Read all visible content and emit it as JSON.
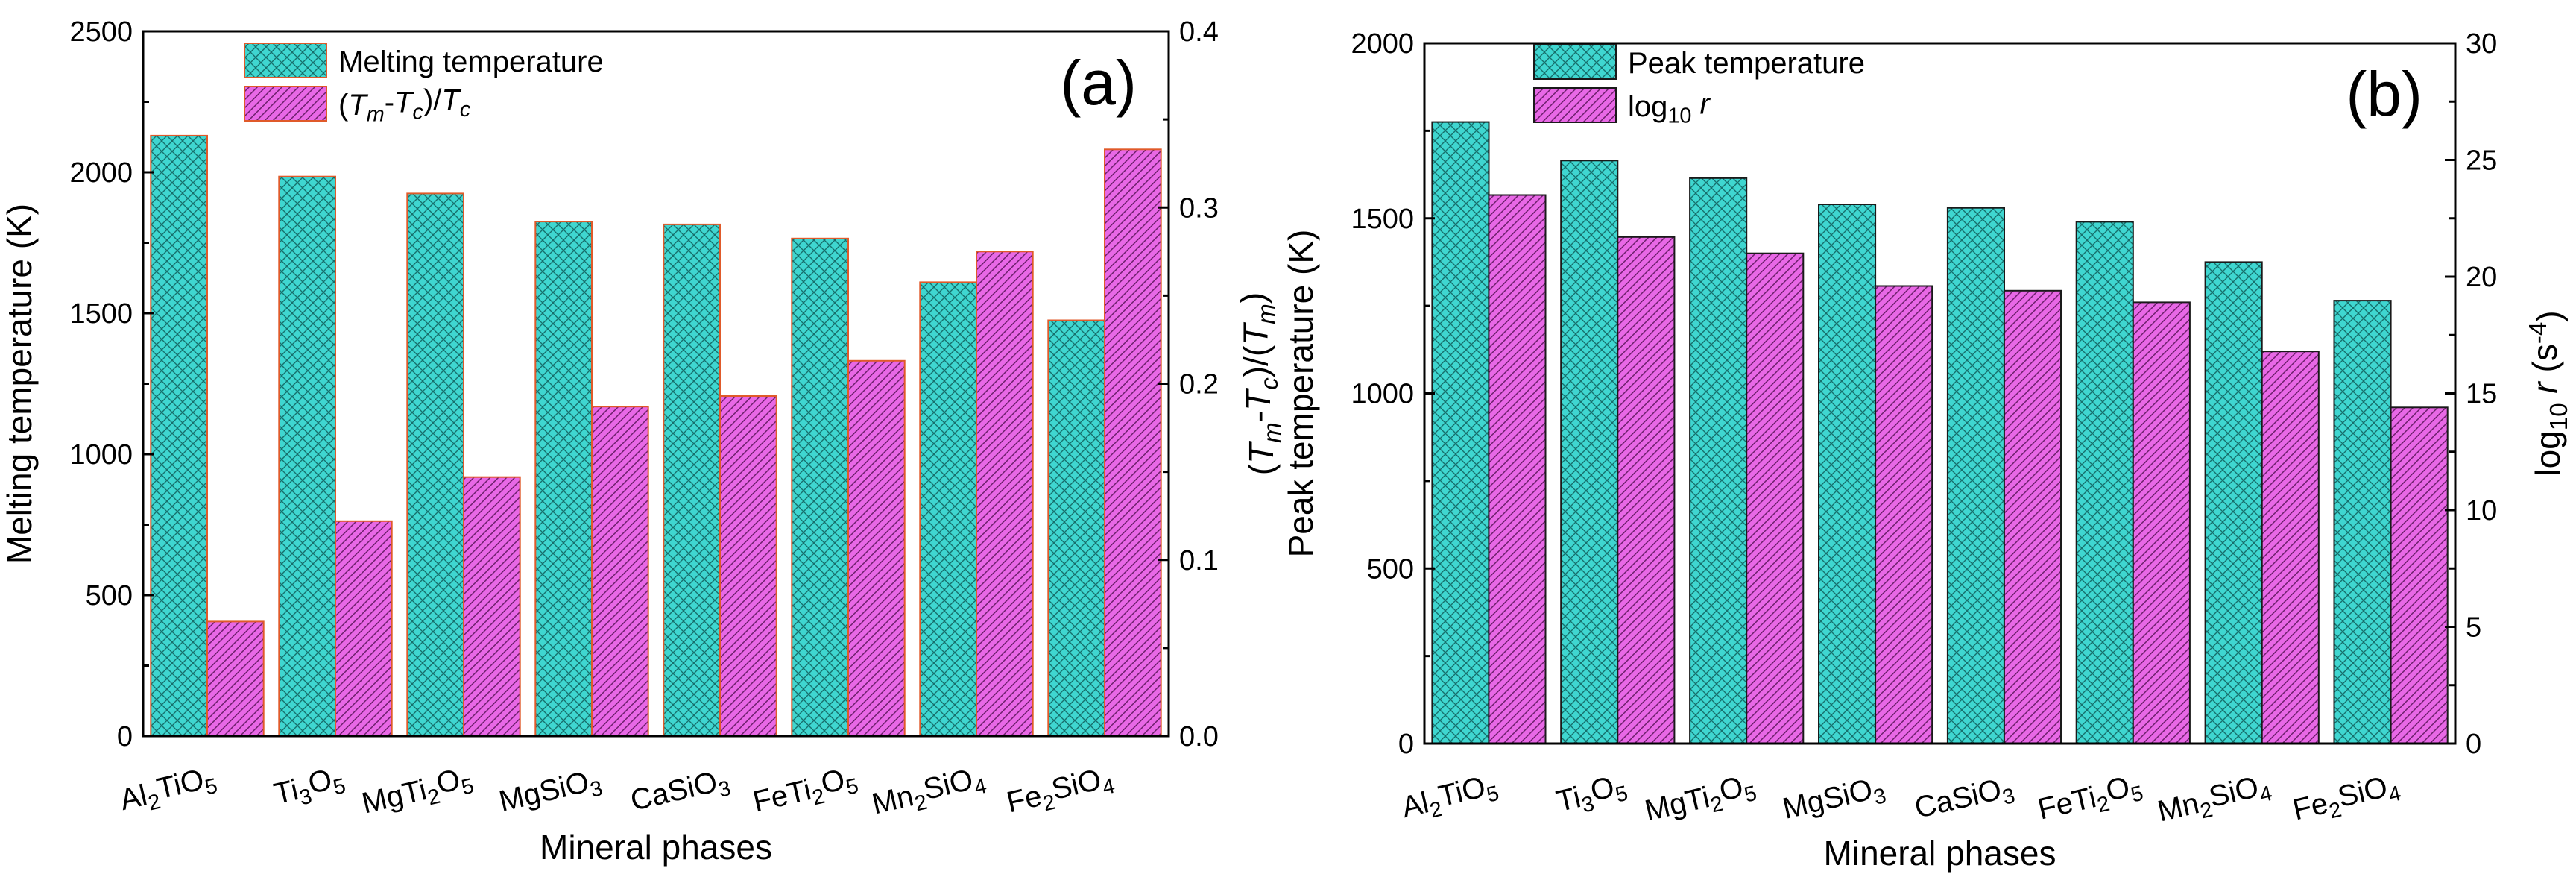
{
  "chart_data": [
    {
      "type": "bar",
      "panel_label": "(a)",
      "categories": [
        "Al2TiO5",
        "Ti3O5",
        "MgTi2O5",
        "MgSiO3",
        "CaSiO3",
        "FeTi2O5",
        "Mn2SiO4",
        "Fe2SiO4"
      ],
      "category_labels": [
        [
          {
            "t": "Al",
            "s": ""
          },
          {
            "t": "2",
            "s": "sub"
          },
          {
            "t": "TiO",
            "s": ""
          },
          {
            "t": "5",
            "s": "sub"
          }
        ],
        [
          {
            "t": "Ti",
            "s": ""
          },
          {
            "t": "3",
            "s": "sub"
          },
          {
            "t": "O",
            "s": ""
          },
          {
            "t": "5",
            "s": "sub"
          }
        ],
        [
          {
            "t": "MgTi",
            "s": ""
          },
          {
            "t": "2",
            "s": "sub"
          },
          {
            "t": "O",
            "s": ""
          },
          {
            "t": "5",
            "s": "sub"
          }
        ],
        [
          {
            "t": "MgSiO",
            "s": ""
          },
          {
            "t": "3",
            "s": "sub"
          }
        ],
        [
          {
            "t": "CaSiO",
            "s": ""
          },
          {
            "t": "3",
            "s": "sub"
          }
        ],
        [
          {
            "t": "FeTi",
            "s": ""
          },
          {
            "t": "2",
            "s": "sub"
          },
          {
            "t": "O",
            "s": ""
          },
          {
            "t": "5",
            "s": "sub"
          }
        ],
        [
          {
            "t": "Mn",
            "s": ""
          },
          {
            "t": "2",
            "s": "sub"
          },
          {
            "t": "SiO",
            "s": ""
          },
          {
            "t": "4",
            "s": "sub"
          }
        ],
        [
          {
            "t": "Fe",
            "s": ""
          },
          {
            "t": "2",
            "s": "sub"
          },
          {
            "t": "SiO",
            "s": ""
          },
          {
            "t": "4",
            "s": "sub"
          }
        ]
      ],
      "xlabel": "Mineral phases",
      "ylabel": "Melting temperature (K)",
      "ylim": [
        0,
        2500
      ],
      "yticks": [
        0,
        500,
        1000,
        1500,
        2000,
        2500
      ],
      "y2label_runs": [
        {
          "t": "(",
          "s": ""
        },
        {
          "t": "T",
          "s": "i"
        },
        {
          "t": "m",
          "s": "isub"
        },
        {
          "t": "-",
          "s": ""
        },
        {
          "t": "T",
          "s": "i"
        },
        {
          "t": "c",
          "s": "isub"
        },
        {
          "t": ")/(",
          "s": ""
        },
        {
          "t": "T",
          "s": "i"
        },
        {
          "t": "m",
          "s": "isub"
        },
        {
          "t": ")",
          "s": ""
        }
      ],
      "y2lim": [
        0,
        0.4
      ],
      "y2ticks": [
        "0.0",
        "0.1",
        "0.2",
        "0.3",
        "0.4"
      ],
      "legend_position": "top-center",
      "series": [
        {
          "name": "Melting temperature",
          "name_runs": [
            {
              "t": "Melting temperature",
              "s": ""
            }
          ],
          "axis": "left",
          "color": "#3fd6d0",
          "edge": "#e05a2a",
          "pattern": "crosshatch",
          "values": [
            2130,
            1985,
            1925,
            1825,
            1815,
            1765,
            1610,
            1475
          ]
        },
        {
          "name": "(Tm-Tc)/Tc",
          "name_runs": [
            {
              "t": "(",
              "s": ""
            },
            {
              "t": "T",
              "s": "i"
            },
            {
              "t": "m",
              "s": "isub"
            },
            {
              "t": "-",
              "s": ""
            },
            {
              "t": "T",
              "s": "i"
            },
            {
              "t": "c",
              "s": "isub"
            },
            {
              "t": ")/",
              "s": ""
            },
            {
              "t": "T",
              "s": "i"
            },
            {
              "t": "c",
              "s": "isub"
            }
          ],
          "axis": "right",
          "color": "#e868e6",
          "edge": "#e05a2a",
          "pattern": "diagonal",
          "values": [
            0.065,
            0.122,
            0.147,
            0.187,
            0.193,
            0.213,
            0.275,
            0.333
          ]
        }
      ]
    },
    {
      "type": "bar",
      "panel_label": "(b)",
      "categories": [
        "Al2TiO5",
        "Ti3O5",
        "MgTi2O5",
        "MgSiO3",
        "CaSiO3",
        "FeTi2O5",
        "Mn2SiO4",
        "Fe2SiO4"
      ],
      "category_labels": [
        [
          {
            "t": "Al",
            "s": ""
          },
          {
            "t": "2",
            "s": "sub"
          },
          {
            "t": "TiO",
            "s": ""
          },
          {
            "t": "5",
            "s": "sub"
          }
        ],
        [
          {
            "t": "Ti",
            "s": ""
          },
          {
            "t": "3",
            "s": "sub"
          },
          {
            "t": "O",
            "s": ""
          },
          {
            "t": "5",
            "s": "sub"
          }
        ],
        [
          {
            "t": "MgTi",
            "s": ""
          },
          {
            "t": "2",
            "s": "sub"
          },
          {
            "t": "O",
            "s": ""
          },
          {
            "t": "5",
            "s": "sub"
          }
        ],
        [
          {
            "t": "MgSiO",
            "s": ""
          },
          {
            "t": "3",
            "s": "sub"
          }
        ],
        [
          {
            "t": "CaSiO",
            "s": ""
          },
          {
            "t": "3",
            "s": "sub"
          }
        ],
        [
          {
            "t": "FeTi",
            "s": ""
          },
          {
            "t": "2",
            "s": "sub"
          },
          {
            "t": "O",
            "s": ""
          },
          {
            "t": "5",
            "s": "sub"
          }
        ],
        [
          {
            "t": "Mn",
            "s": ""
          },
          {
            "t": "2",
            "s": "sub"
          },
          {
            "t": "SiO",
            "s": ""
          },
          {
            "t": "4",
            "s": "sub"
          }
        ],
        [
          {
            "t": "Fe",
            "s": ""
          },
          {
            "t": "2",
            "s": "sub"
          },
          {
            "t": "SiO",
            "s": ""
          },
          {
            "t": "4",
            "s": "sub"
          }
        ]
      ],
      "xlabel": "Mineral phases",
      "ylabel": "Peak temperature (K)",
      "ylim": [
        0,
        2000
      ],
      "yticks": [
        0,
        500,
        1000,
        1500,
        2000
      ],
      "y2label_runs": [
        {
          "t": "log",
          "s": ""
        },
        {
          "t": "10",
          "s": "sub"
        },
        {
          "t": " ",
          "s": ""
        },
        {
          "t": "r",
          "s": "i"
        },
        {
          "t": " (s",
          "s": ""
        },
        {
          "t": "-4",
          "s": "sup"
        },
        {
          "t": ")",
          "s": ""
        }
      ],
      "y2lim": [
        0,
        30
      ],
      "y2ticks": [
        "0",
        "5",
        "10",
        "15",
        "20",
        "25",
        "30"
      ],
      "legend_position": "top-left",
      "series": [
        {
          "name": "Peak temperature",
          "name_runs": [
            {
              "t": "Peak temperature",
              "s": ""
            }
          ],
          "axis": "left",
          "color": "#3fd6d0",
          "edge": "#1a1a1a",
          "pattern": "crosshatch",
          "values": [
            1775,
            1665,
            1615,
            1540,
            1530,
            1490,
            1375,
            1265
          ]
        },
        {
          "name": "log10 r",
          "name_runs": [
            {
              "t": "log",
              "s": ""
            },
            {
              "t": "10",
              "s": "sub"
            },
            {
              "t": " ",
              "s": ""
            },
            {
              "t": "r",
              "s": "i"
            }
          ],
          "axis": "right",
          "color": "#e868e6",
          "edge": "#1a1a1a",
          "pattern": "diagonal",
          "values": [
            23.5,
            21.7,
            21.0,
            19.6,
            19.4,
            18.9,
            16.8,
            14.4
          ]
        }
      ]
    }
  ]
}
